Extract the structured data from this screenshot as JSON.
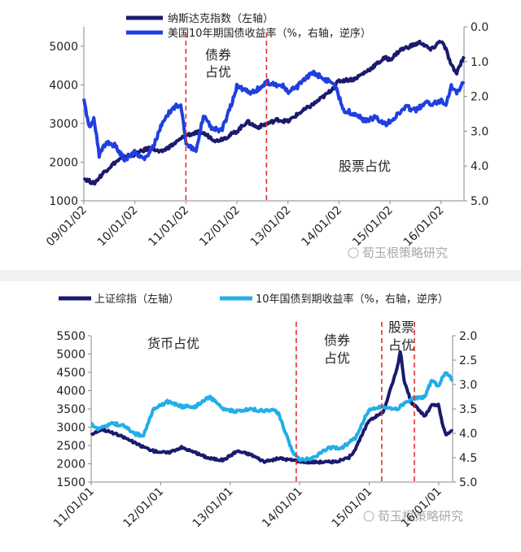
{
  "chart_data": [
    {
      "type": "line",
      "id": "top",
      "legend_position": "top-left",
      "legend": [
        {
          "name": "纳斯达克指数（左轴）",
          "color": "#1a1a6e"
        },
        {
          "name": "美国10年期国债收益率（%，右轴，逆序）",
          "color": "#1f3fe0"
        }
      ],
      "x_tick_labels": [
        "09/01/02",
        "10/01/02",
        "11/01/02",
        "12/01/02",
        "13/01/02",
        "14/01/02",
        "15/01/02",
        "16/01/02"
      ],
      "x_range": [
        2009.0,
        2016.45
      ],
      "y_left": {
        "range": [
          1000,
          5500
        ],
        "ticks": [
          1000,
          2000,
          3000,
          4000,
          5000
        ]
      },
      "y_right": {
        "range": [
          0.0,
          5.0
        ],
        "inverted": true,
        "ticks": [
          "0.0",
          "1.0",
          "2.0",
          "3.0",
          "4.0",
          "5.0"
        ]
      },
      "series": [
        {
          "name": "纳斯达克指数（左轴）",
          "axis": "left",
          "color": "#1a1a6e",
          "x": [
            2009.0,
            2009.2,
            2009.4,
            2009.6,
            2009.8,
            2010.0,
            2010.3,
            2010.5,
            2010.8,
            2011.0,
            2011.3,
            2011.6,
            2011.8,
            2012.0,
            2012.2,
            2012.4,
            2012.6,
            2012.8,
            2013.0,
            2013.2,
            2013.5,
            2013.8,
            2014.0,
            2014.3,
            2014.6,
            2014.9,
            2015.0,
            2015.2,
            2015.4,
            2015.6,
            2015.8,
            2016.0,
            2016.1,
            2016.2,
            2016.3,
            2016.45
          ],
          "values": [
            1580,
            1450,
            1750,
            1980,
            2150,
            2200,
            2380,
            2250,
            2500,
            2700,
            2780,
            2550,
            2650,
            2800,
            3050,
            2900,
            3000,
            3100,
            3050,
            3250,
            3500,
            3800,
            4100,
            4150,
            4400,
            4700,
            4650,
            4900,
            5000,
            5100,
            4900,
            5150,
            4900,
            4500,
            4300,
            4750
          ]
        },
        {
          "name": "美国10年期国债收益率（%，右轴，逆序）",
          "axis": "right",
          "color": "#1f3fe0",
          "x": [
            2009.0,
            2009.1,
            2009.2,
            2009.3,
            2009.45,
            2009.6,
            2009.8,
            2010.0,
            2010.2,
            2010.4,
            2010.5,
            2010.7,
            2010.9,
            2011.0,
            2011.2,
            2011.35,
            2011.5,
            2011.7,
            2011.9,
            2012.0,
            2012.3,
            2012.6,
            2012.9,
            2013.0,
            2013.2,
            2013.5,
            2013.7,
            2013.9,
            2014.1,
            2014.3,
            2014.5,
            2014.7,
            2014.9,
            2015.1,
            2015.3,
            2015.5,
            2015.7,
            2015.9,
            2016.0,
            2016.1,
            2016.2,
            2016.3,
            2016.45
          ],
          "values": [
            2.1,
            2.9,
            2.6,
            3.7,
            3.3,
            3.4,
            3.8,
            3.6,
            3.8,
            3.3,
            2.9,
            2.4,
            2.2,
            3.3,
            3.6,
            2.5,
            2.9,
            3.0,
            2.2,
            1.7,
            1.9,
            1.6,
            1.7,
            1.9,
            1.7,
            1.3,
            1.5,
            1.6,
            2.4,
            2.5,
            2.7,
            2.6,
            2.8,
            2.6,
            2.3,
            2.4,
            2.2,
            2.2,
            2.1,
            2.2,
            1.7,
            1.9,
            1.6
          ]
        }
      ],
      "vlines": [
        2011.0,
        2012.58
      ],
      "annotations": [
        {
          "text": "债券",
          "pos": "top, between the two dashed lines"
        },
        {
          "text": "占优",
          "pos": "below 债券"
        },
        {
          "text": "股票占优",
          "pos": "right-center"
        }
      ],
      "watermark": "荀玉根策略研究"
    },
    {
      "type": "line",
      "id": "bottom",
      "legend_position": "top",
      "legend": [
        {
          "name": "上证综指（左轴）",
          "color": "#1a1a6e"
        },
        {
          "name": "10年国债到期收益率（%，右轴，逆序）",
          "color": "#22aee6"
        }
      ],
      "x_tick_labels": [
        "11/01/01",
        "12/01/01",
        "13/01/01",
        "14/01/01",
        "15/01/01",
        "16/01/01"
      ],
      "x_range": [
        2011.0,
        2016.2
      ],
      "y_left": {
        "range": [
          1500,
          5500
        ],
        "ticks": [
          1500,
          2000,
          2500,
          3000,
          3500,
          4000,
          4500,
          5000,
          5500
        ]
      },
      "y_right": {
        "range": [
          2.0,
          5.0
        ],
        "inverted": true,
        "ticks": [
          "2.0",
          "2.5",
          "3.0",
          "3.5",
          "4.0",
          "4.5",
          "5.0"
        ]
      },
      "series": [
        {
          "name": "上证综指（左轴）",
          "axis": "left",
          "color": "#1a1a6e",
          "x": [
            2011.0,
            2011.15,
            2011.3,
            2011.5,
            2011.7,
            2011.9,
            2012.1,
            2012.3,
            2012.5,
            2012.7,
            2012.9,
            2013.1,
            2013.3,
            2013.5,
            2013.7,
            2013.9,
            2014.1,
            2014.3,
            2014.5,
            2014.7,
            2014.8,
            2014.9,
            2015.0,
            2015.2,
            2015.3,
            2015.4,
            2015.45,
            2015.5,
            2015.6,
            2015.7,
            2015.8,
            2015.9,
            2016.0,
            2016.05,
            2016.1,
            2016.2
          ],
          "values": [
            2800,
            2950,
            2850,
            2700,
            2500,
            2350,
            2300,
            2450,
            2300,
            2150,
            2100,
            2350,
            2250,
            2050,
            2150,
            2100,
            2050,
            2050,
            2050,
            2150,
            2400,
            2800,
            3200,
            3400,
            4000,
            4600,
            5100,
            4300,
            3700,
            3500,
            3300,
            3600,
            3600,
            3100,
            2800,
            2900
          ]
        },
        {
          "name": "10年国债到期收益率（%，右轴，逆序）",
          "axis": "right",
          "color": "#22aee6",
          "x": [
            2011.0,
            2011.1,
            2011.3,
            2011.5,
            2011.6,
            2011.75,
            2011.9,
            2012.1,
            2012.3,
            2012.5,
            2012.7,
            2012.9,
            2013.1,
            2013.3,
            2013.5,
            2013.6,
            2013.7,
            2013.8,
            2013.9,
            2014.0,
            2014.2,
            2014.4,
            2014.6,
            2014.8,
            2015.0,
            2015.2,
            2015.4,
            2015.6,
            2015.8,
            2015.9,
            2016.0,
            2016.05,
            2016.1,
            2016.2
          ],
          "values": [
            3.8,
            3.9,
            3.8,
            3.85,
            4.0,
            4.05,
            3.5,
            3.35,
            3.45,
            3.45,
            3.25,
            3.5,
            3.55,
            3.5,
            3.55,
            3.5,
            3.6,
            4.0,
            4.4,
            4.55,
            4.5,
            4.3,
            4.3,
            4.1,
            3.5,
            3.45,
            3.5,
            3.3,
            3.25,
            2.9,
            3.05,
            2.85,
            2.75,
            2.9
          ]
        }
      ],
      "vlines": [
        2013.95,
        2015.18,
        2015.65
      ],
      "annotations": [
        {
          "text": "货币占优",
          "pos": "top-left"
        },
        {
          "text": "债券",
          "pos": "top, right of first dashed line"
        },
        {
          "text": "占优",
          "pos": "below 债券"
        },
        {
          "text": "股票",
          "pos": "top, between second and third dashed lines"
        },
        {
          "text": "占优",
          "pos": "below 股票"
        }
      ],
      "watermark": "荀玉根策略研究"
    }
  ]
}
